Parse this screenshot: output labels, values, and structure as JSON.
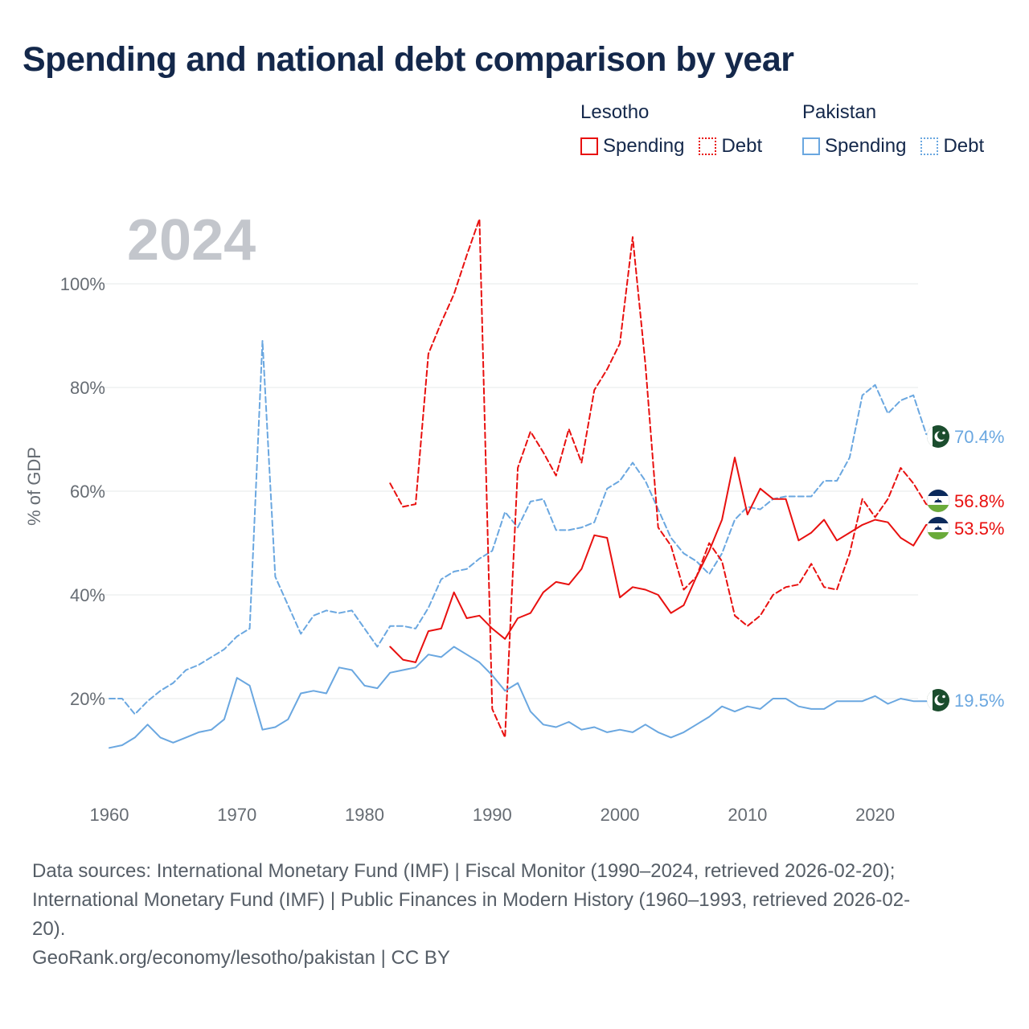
{
  "title": "Spending and national debt comparison by year",
  "legend": {
    "groups": [
      {
        "name": "Lesotho",
        "color": "#e8100f",
        "items": [
          {
            "label": "Spending",
            "style": "solid"
          },
          {
            "label": "Debt",
            "style": "dotted"
          }
        ]
      },
      {
        "name": "Pakistan",
        "color": "#6aa7e0",
        "items": [
          {
            "label": "Spending",
            "style": "solid"
          },
          {
            "label": "Debt",
            "style": "dotted"
          }
        ]
      }
    ]
  },
  "chart_data": {
    "type": "line",
    "year_label": "2024",
    "ylabel": "% of GDP",
    "xlim": [
      1960,
      2025
    ],
    "ylim": [
      5,
      115
    ],
    "xticks": [
      1960,
      1970,
      1980,
      1990,
      2000,
      2010,
      2020
    ],
    "yticks": [
      {
        "value": 20,
        "label": "20%"
      },
      {
        "value": 40,
        "label": "40%"
      },
      {
        "value": 60,
        "label": "60%"
      },
      {
        "value": 80,
        "label": "80%"
      },
      {
        "value": 100,
        "label": "100%"
      }
    ],
    "series": [
      {
        "name": "Pakistan Debt",
        "country": "Pakistan",
        "metric": "Debt",
        "color": "#6aa7e0",
        "dash": "dashed",
        "end_label": "70.4%",
        "flag": "pakistan-flag",
        "x": [
          1960,
          1961,
          1962,
          1963,
          1964,
          1965,
          1966,
          1967,
          1968,
          1969,
          1970,
          1971,
          1972,
          1973,
          1974,
          1975,
          1976,
          1977,
          1978,
          1979,
          1980,
          1981,
          1982,
          1983,
          1984,
          1985,
          1986,
          1987,
          1988,
          1989,
          1990,
          1991,
          1992,
          1993,
          1994,
          1995,
          1996,
          1997,
          1998,
          1999,
          2000,
          2001,
          2002,
          2003,
          2004,
          2005,
          2006,
          2007,
          2008,
          2009,
          2010,
          2011,
          2012,
          2013,
          2014,
          2015,
          2016,
          2017,
          2018,
          2019,
          2020,
          2021,
          2022,
          2023,
          2024,
          2025
        ],
        "values": [
          20,
          20,
          17,
          19.5,
          21.5,
          23,
          25.5,
          26.5,
          28,
          29.5,
          32,
          33.5,
          89,
          43.5,
          38,
          32.5,
          36,
          37,
          36.5,
          37,
          33.5,
          30,
          34,
          34,
          33.5,
          37.5,
          43,
          44.5,
          45,
          47,
          48.5,
          56,
          53,
          58,
          58.5,
          52.5,
          52.5,
          53,
          54,
          60.5,
          62,
          65.5,
          62,
          56.5,
          51,
          48,
          46.5,
          44,
          48,
          54.5,
          57,
          56.5,
          58.5,
          59,
          59,
          59,
          62,
          62,
          66.5,
          78.5,
          80.5,
          75,
          77.5,
          78.5,
          71,
          70.4
        ]
      },
      {
        "name": "Lesotho Debt",
        "country": "Lesotho",
        "metric": "Debt",
        "color": "#e8100f",
        "dash": "dashed",
        "end_label": "56.8%",
        "flag": "lesotho-flag",
        "x": [
          1982,
          1983,
          1984,
          1985,
          1986,
          1987,
          1988,
          1989,
          1990,
          1991,
          1992,
          1993,
          1994,
          1995,
          1996,
          1997,
          1998,
          1999,
          2000,
          2001,
          2002,
          2003,
          2004,
          2005,
          2006,
          2007,
          2008,
          2009,
          2010,
          2011,
          2012,
          2013,
          2014,
          2015,
          2016,
          2017,
          2018,
          2019,
          2020,
          2021,
          2022,
          2023,
          2024,
          2025
        ],
        "values": [
          61.5,
          57,
          57.5,
          86.5,
          92.5,
          98,
          105.5,
          112.5,
          18,
          12.5,
          64.5,
          71.5,
          67.5,
          63,
          72,
          65.5,
          79.5,
          83.5,
          88.5,
          109,
          84.5,
          53,
          49.5,
          41,
          43.5,
          50,
          46.5,
          36,
          34,
          36,
          40,
          41.5,
          42,
          46,
          41.5,
          41,
          48,
          58.5,
          55,
          58.5,
          64.5,
          61.5,
          57.5,
          56.8
        ]
      },
      {
        "name": "Lesotho Spending",
        "country": "Lesotho",
        "metric": "Spending",
        "color": "#e8100f",
        "dash": "solid",
        "end_label": "53.5%",
        "flag": "lesotho-flag",
        "x": [
          1982,
          1983,
          1984,
          1985,
          1986,
          1987,
          1988,
          1989,
          1990,
          1991,
          1992,
          1993,
          1994,
          1995,
          1996,
          1997,
          1998,
          1999,
          2000,
          2001,
          2002,
          2003,
          2004,
          2005,
          2006,
          2007,
          2008,
          2009,
          2010,
          2011,
          2012,
          2013,
          2014,
          2015,
          2016,
          2017,
          2018,
          2019,
          2020,
          2021,
          2022,
          2023,
          2024,
          2025
        ],
        "values": [
          30,
          27.5,
          27,
          33,
          33.5,
          40.5,
          35.5,
          36,
          33.5,
          31.5,
          35.5,
          36.5,
          40.5,
          42.5,
          42,
          45,
          51.5,
          51,
          39.5,
          41.5,
          41,
          40,
          36.5,
          38,
          43.5,
          48.5,
          54.5,
          66.5,
          55.5,
          60.5,
          58.5,
          58.5,
          50.5,
          52,
          54.5,
          50.5,
          52,
          53.5,
          54.5,
          54,
          51,
          49.5,
          53.5,
          53.5
        ]
      },
      {
        "name": "Pakistan Spending",
        "country": "Pakistan",
        "metric": "Spending",
        "color": "#6aa7e0",
        "dash": "solid",
        "end_label": "19.5%",
        "flag": "pakistan-flag",
        "x": [
          1960,
          1961,
          1962,
          1963,
          1964,
          1965,
          1966,
          1967,
          1968,
          1969,
          1970,
          1971,
          1972,
          1973,
          1974,
          1975,
          1976,
          1977,
          1978,
          1979,
          1980,
          1981,
          1982,
          1983,
          1984,
          1985,
          1986,
          1987,
          1988,
          1989,
          1990,
          1991,
          1992,
          1993,
          1994,
          1995,
          1996,
          1997,
          1998,
          1999,
          2000,
          2001,
          2002,
          2003,
          2004,
          2005,
          2006,
          2007,
          2008,
          2009,
          2010,
          2011,
          2012,
          2013,
          2014,
          2015,
          2016,
          2017,
          2018,
          2019,
          2020,
          2021,
          2022,
          2023,
          2024,
          2025
        ],
        "values": [
          10.5,
          11,
          12.5,
          15,
          12.5,
          11.5,
          12.5,
          13.5,
          14,
          16,
          24,
          22.5,
          14,
          14.5,
          16,
          21,
          21.5,
          21,
          26,
          25.5,
          22.5,
          22,
          25,
          25.5,
          26,
          28.5,
          28,
          30,
          28.5,
          27,
          24.5,
          21.5,
          23,
          17.5,
          15,
          14.5,
          15.5,
          14,
          14.5,
          13.5,
          14,
          13.5,
          15,
          13.5,
          12.5,
          13.5,
          15,
          16.5,
          18.5,
          17.5,
          18.5,
          18,
          20,
          20,
          18.5,
          18,
          18,
          19.5,
          19.5,
          19.5,
          20.5,
          19,
          20,
          19.5,
          19.5,
          19.5
        ]
      }
    ]
  },
  "footer": {
    "sources_line1": "Data sources: International Monetary Fund (IMF) | Fiscal Monitor (1990–2024, retrieved 2026-02-20);",
    "sources_line2": "International Monetary Fund (IMF) | Public Finances in Modern History (1960–1993, retrieved 2026-02-",
    "sources_line3": "20).",
    "credit": "GeoRank.org/economy/lesotho/pakistan | CC BY"
  }
}
